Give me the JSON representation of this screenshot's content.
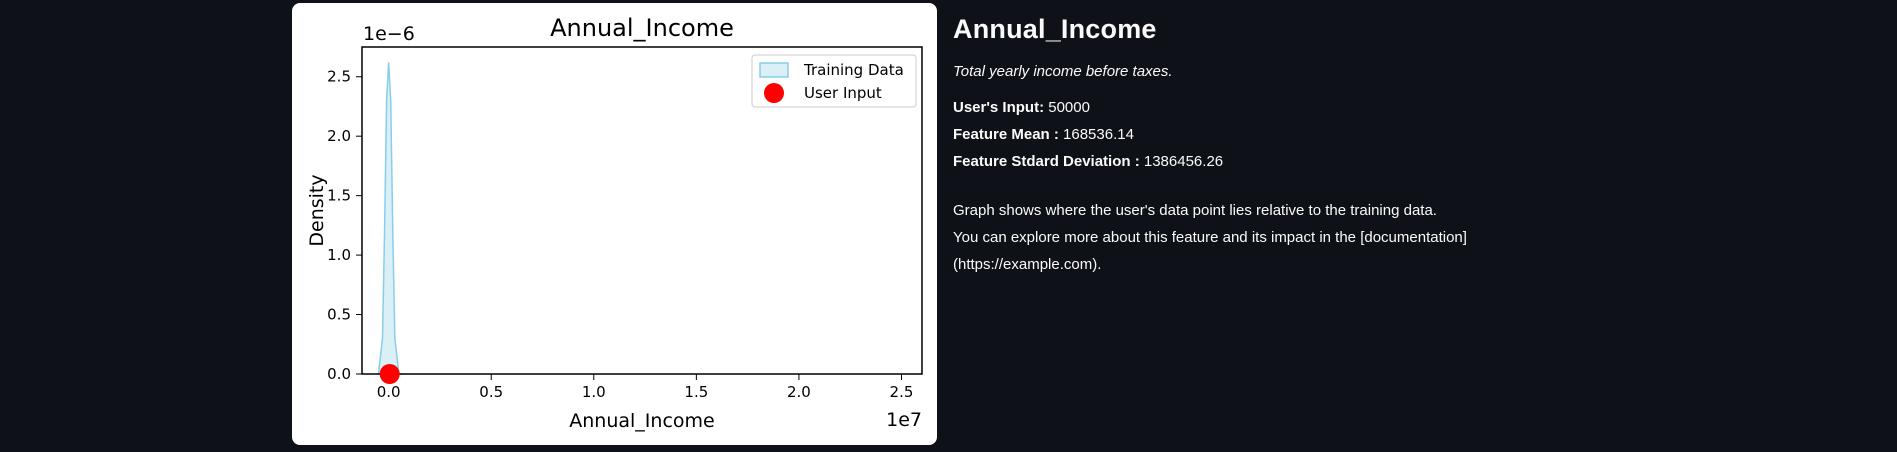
{
  "chart_data": {
    "type": "area",
    "title": "Annual_Income",
    "xlabel": "Annual_Income",
    "ylabel": "Density",
    "x_offset_label": "1e7",
    "y_offset_label": "1e−6",
    "x_ticks": [
      0.0,
      0.5,
      1.0,
      1.5,
      2.0,
      2.5
    ],
    "x_tick_labels": [
      "0.0",
      "0.5",
      "1.0",
      "1.5",
      "2.0",
      "2.5"
    ],
    "y_ticks": [
      0.0,
      0.5,
      1.0,
      1.5,
      2.0,
      2.5
    ],
    "y_tick_labels": [
      "0.0",
      "0.5",
      "1.0",
      "1.5",
      "2.0",
      "2.5"
    ],
    "xlim": [
      -0.13,
      2.6
    ],
    "ylim": [
      0.0,
      2.75
    ],
    "legend_position": "top-right",
    "series": [
      {
        "name": "Training Data",
        "kind": "kde-fill",
        "x": [
          -0.05,
          -0.03,
          -0.02,
          -0.01,
          0.0,
          0.01,
          0.02,
          0.03,
          0.05,
          0.08
        ],
        "y": [
          0.0,
          0.3,
          1.2,
          2.3,
          2.62,
          2.3,
          1.2,
          0.3,
          0.0,
          0.0
        ],
        "fill_color": "#dbeff7",
        "line_color": "#87ceeb"
      },
      {
        "name": "User Input",
        "kind": "point",
        "x": [
          0.005
        ],
        "y": [
          0.0
        ],
        "color": "#ff0000"
      }
    ],
    "grid": false
  },
  "info": {
    "title": "Annual_Income",
    "description": "Total yearly income before taxes.",
    "user_input_label": "User's Input:",
    "user_input_value": "50000",
    "mean_label": "Feature Mean :",
    "mean_value": "168536.14",
    "std_label": "Feature Stdard Deviation :",
    "std_value": "1386456.26",
    "note_lines": [
      "Graph shows where the user's data point lies relative to the training data.",
      "You can explore more about this feature and its impact in the [documentation]",
      "(https://example.com)."
    ]
  }
}
